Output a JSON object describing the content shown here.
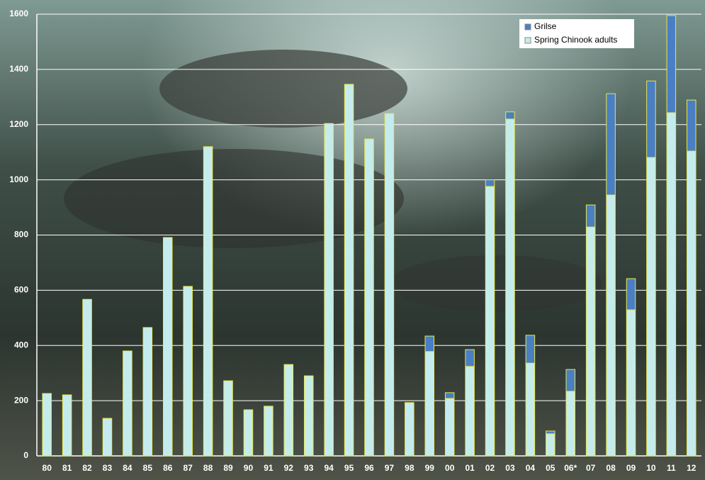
{
  "chart_data": {
    "type": "stacked_bar",
    "categories": [
      "80",
      "81",
      "82",
      "83",
      "84",
      "85",
      "86",
      "87",
      "88",
      "89",
      "90",
      "91",
      "92",
      "93",
      "94",
      "95",
      "96",
      "97",
      "98",
      "99",
      "00",
      "01",
      "02",
      "03",
      "04",
      "05",
      "06*",
      "07",
      "08",
      "09",
      "10",
      "11",
      "12"
    ],
    "series": [
      {
        "name": "Spring Chinook adults",
        "color": "#c5ecec",
        "values": [
          226,
          221,
          567,
          136,
          380,
          465,
          791,
          614,
          1120,
          272,
          167,
          180,
          331,
          290,
          1204,
          1346,
          1148,
          1240,
          193,
          378,
          208,
          324,
          976,
          1220,
          336,
          80,
          234,
          829,
          945,
          529,
          1081,
          1243,
          1104
        ]
      },
      {
        "name": "Grilse",
        "color": "#4a7fc4",
        "values": [
          0,
          0,
          0,
          0,
          0,
          0,
          0,
          0,
          0,
          0,
          0,
          0,
          0,
          0,
          0,
          0,
          0,
          0,
          0,
          56,
          21,
          61,
          24,
          26,
          101,
          10,
          79,
          80,
          367,
          113,
          277,
          352,
          185
        ]
      }
    ],
    "ylim": [
      0,
      1600
    ],
    "yticks": [
      0,
      200,
      400,
      600,
      800,
      1000,
      1200,
      1400,
      1600
    ],
    "grid": true,
    "legend": "top-right"
  }
}
